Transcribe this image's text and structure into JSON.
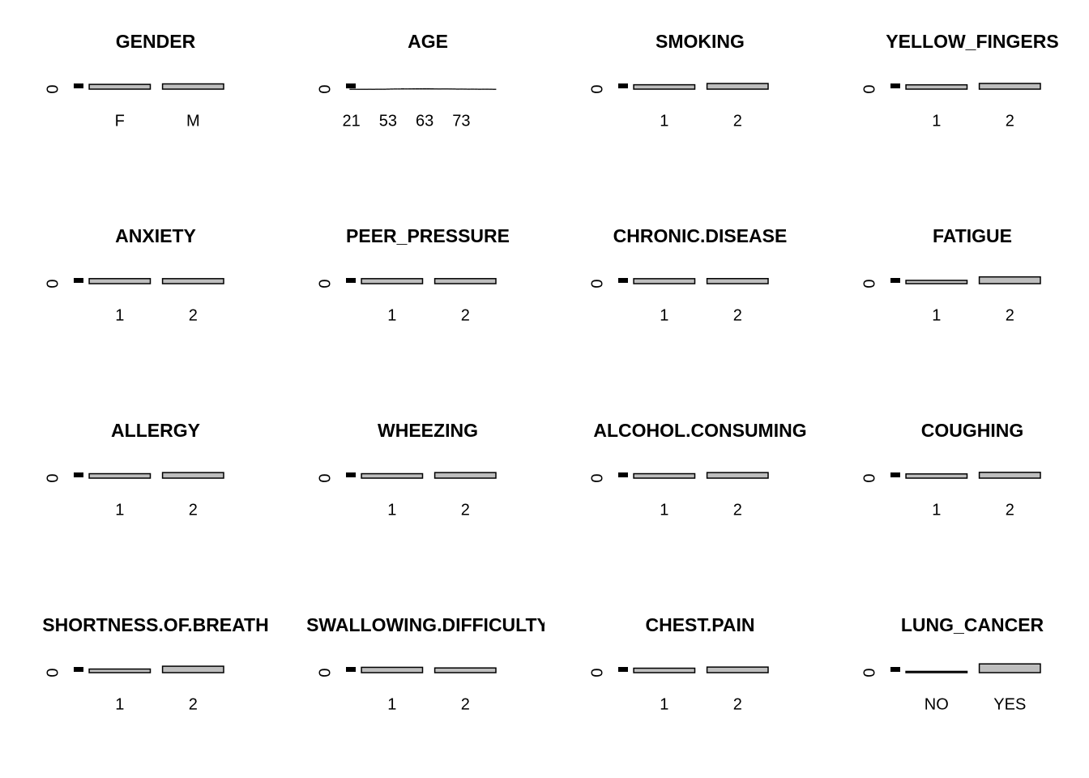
{
  "chart_data": [
    {
      "type": "bar",
      "title": "GENDER",
      "categories": [
        "F",
        "M"
      ],
      "values": [
        147,
        162
      ],
      "color": "#bebebe",
      "ylim": [
        0,
        300
      ],
      "yticks": [
        0
      ]
    },
    {
      "type": "bar",
      "title": "AGE",
      "categories": [
        "21",
        null,
        null,
        null,
        null,
        null,
        null,
        null,
        null,
        null,
        "53",
        null,
        null,
        null,
        null,
        null,
        null,
        null,
        null,
        null,
        "63",
        null,
        null,
        null,
        null,
        null,
        null,
        null,
        null,
        null,
        "73",
        null,
        null,
        null,
        null,
        null,
        null,
        null,
        null,
        null
      ],
      "values": [
        1,
        1,
        1,
        1,
        1,
        2,
        1,
        3,
        3,
        3,
        6,
        9,
        11,
        11,
        15,
        13,
        14,
        16,
        17,
        17,
        18,
        18,
        15,
        12,
        11,
        12,
        12,
        11,
        10,
        7,
        8,
        7,
        5,
        6,
        5,
        3,
        4,
        4,
        3,
        1
      ],
      "color": "#bebebe",
      "ylim": [
        0,
        300
      ],
      "yticks": [
        0
      ]
    },
    {
      "type": "bar",
      "title": "SMOKING",
      "categories": [
        "1",
        "2"
      ],
      "values": [
        135,
        174
      ],
      "color": "#bebebe",
      "ylim": [
        0,
        300
      ],
      "yticks": [
        0
      ]
    },
    {
      "type": "bar",
      "title": "YELLOW_FINGERS",
      "categories": [
        "1",
        "2"
      ],
      "values": [
        133,
        176
      ],
      "color": "#bebebe",
      "ylim": [
        0,
        300
      ],
      "yticks": [
        0
      ]
    },
    {
      "type": "bar",
      "title": "ANXIETY",
      "categories": [
        "1",
        "2"
      ],
      "values": [
        155,
        154
      ],
      "color": "#bebebe",
      "ylim": [
        0,
        300
      ],
      "yticks": [
        0
      ]
    },
    {
      "type": "bar",
      "title": "PEER_PRESSURE",
      "categories": [
        "1",
        "2"
      ],
      "values": [
        154,
        155
      ],
      "color": "#bebebe",
      "ylim": [
        0,
        300
      ],
      "yticks": [
        0
      ]
    },
    {
      "type": "bar",
      "title": "CHRONIC.DISEASE",
      "categories": [
        "1",
        "2"
      ],
      "values": [
        153,
        156
      ],
      "color": "#bebebe",
      "ylim": [
        0,
        300
      ],
      "yticks": [
        0
      ]
    },
    {
      "type": "bar",
      "title": "FATIGUE",
      "categories": [
        "1",
        "2"
      ],
      "values": [
        101,
        208
      ],
      "color": "#bebebe",
      "ylim": [
        0,
        300
      ],
      "yticks": [
        0
      ]
    },
    {
      "type": "bar",
      "title": "ALLERGY",
      "categories": [
        "1",
        "2"
      ],
      "values": [
        137,
        172
      ],
      "color": "#bebebe",
      "ylim": [
        0,
        300
      ],
      "yticks": [
        0
      ]
    },
    {
      "type": "bar",
      "title": "WHEEZING",
      "categories": [
        "1",
        "2"
      ],
      "values": [
        137,
        172
      ],
      "color": "#bebebe",
      "ylim": [
        0,
        300
      ],
      "yticks": [
        0
      ]
    },
    {
      "type": "bar",
      "title": "ALCOHOL.CONSUMING",
      "categories": [
        "1",
        "2"
      ],
      "values": [
        137,
        172
      ],
      "color": "#bebebe",
      "ylim": [
        0,
        300
      ],
      "yticks": [
        0
      ]
    },
    {
      "type": "bar",
      "title": "COUGHING",
      "categories": [
        "1",
        "2"
      ],
      "values": [
        130,
        179
      ],
      "color": "#bebebe",
      "ylim": [
        0,
        300
      ],
      "yticks": [
        0
      ]
    },
    {
      "type": "bar",
      "title": "SHORTNESS.OF.BREATH",
      "categories": [
        "1",
        "2"
      ],
      "values": [
        111,
        198
      ],
      "color": "#bebebe",
      "ylim": [
        0,
        300
      ],
      "yticks": [
        0
      ]
    },
    {
      "type": "bar",
      "title": "SWALLOWING.DIFFICULTY",
      "categories": [
        "1",
        "2"
      ],
      "values": [
        164,
        145
      ],
      "color": "#bebebe",
      "ylim": [
        0,
        300
      ],
      "yticks": [
        0
      ]
    },
    {
      "type": "bar",
      "title": "CHEST.PAIN",
      "categories": [
        "1",
        "2"
      ],
      "values": [
        137,
        172
      ],
      "color": "#bebebe",
      "ylim": [
        0,
        300
      ],
      "yticks": [
        0
      ]
    },
    {
      "type": "bar",
      "title": "LUNG_CANCER",
      "categories": [
        "NO",
        "YES"
      ],
      "values": [
        39,
        270
      ],
      "color": "#bebebe",
      "ylim": [
        0,
        300
      ],
      "yticks": [
        0
      ]
    }
  ]
}
